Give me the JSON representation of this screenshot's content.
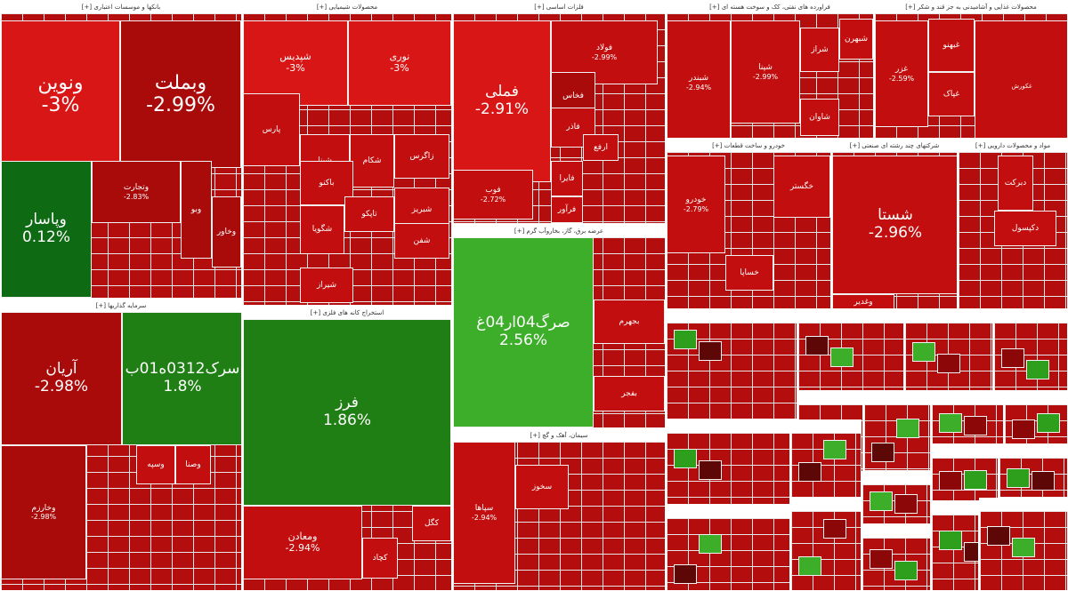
{
  "sectors": [
    {
      "key": "banks",
      "label": "بانکها و موسسات اعتباری [+]",
      "tiles": [
        {
          "name": "ونوین",
          "pct": "-3%"
        },
        {
          "name": "وبملت",
          "pct": "-2.99%"
        },
        {
          "name": "وپاسار",
          "pct": "0.12%"
        },
        {
          "name": "وتجارت",
          "pct": "-2.83%"
        },
        {
          "name": "وبو"
        },
        {
          "name": "وخاور"
        }
      ]
    },
    {
      "key": "chemical",
      "label": "محصولات شیمیایی [+]",
      "tiles": [
        {
          "name": "شپدیس",
          "pct": "-3%"
        },
        {
          "name": "نوری",
          "pct": "-3%"
        },
        {
          "name": "پارس"
        },
        {
          "name": "شپنا"
        },
        {
          "name": "شکام"
        },
        {
          "name": "زاگرس"
        },
        {
          "name": "باکنو"
        },
        {
          "name": "شبریز"
        },
        {
          "name": "شگویا"
        },
        {
          "name": "تاپکو"
        },
        {
          "name": "شفن"
        },
        {
          "name": "شیراز"
        }
      ]
    },
    {
      "key": "metals",
      "label": "فلزات اساسی [+]",
      "tiles": [
        {
          "name": "فملی",
          "pct": "-2.91%"
        },
        {
          "name": "فولاد",
          "pct": "-2.99%"
        },
        {
          "name": "فوب",
          "pct": "-2.72%"
        },
        {
          "name": "فخاس"
        },
        {
          "name": "فاذر"
        },
        {
          "name": "فرآور"
        },
        {
          "name": "فایرا"
        },
        {
          "name": "ارفع"
        }
      ]
    },
    {
      "key": "oil",
      "label": "فراورده های نفتی، کک و سوخت هسته ای [+]",
      "tiles": [
        {
          "name": "شبندر",
          "pct": "-2.94%"
        },
        {
          "name": "شپنا",
          "pct": "-2.99%"
        },
        {
          "name": "شراز"
        },
        {
          "name": "شاوان"
        },
        {
          "name": "شبهرن"
        }
      ]
    },
    {
      "key": "food",
      "label": "محصولات غذایی و آشامیدنی به جز قند و شکر [+]",
      "tiles": [
        {
          "name": "غزر",
          "pct": "-2.59%"
        },
        {
          "name": "غبهنو"
        },
        {
          "name": "غپاک"
        },
        {
          "name": "غکورش"
        }
      ]
    },
    {
      "key": "finance",
      "label": "سرمایه گذاریها [+]",
      "tiles": [
        {
          "name": "آریان",
          "pct": "-2.98%"
        },
        {
          "name": "سرک0312ه01ب",
          "pct": "1.8%"
        },
        {
          "name": "وخارزم",
          "pct": "-2.98%"
        },
        {
          "name": "وسپه"
        },
        {
          "name": "وصنا"
        }
      ]
    },
    {
      "key": "mining",
      "label": "استخراج کانه های فلزی [+]",
      "tiles": [
        {
          "name": "فرز",
          "pct": "1.86%"
        },
        {
          "name": "ومعادن",
          "pct": "-2.94%"
        },
        {
          "name": "کگل"
        },
        {
          "name": "کچاد"
        }
      ]
    },
    {
      "key": "utilities",
      "label": "عرضه برق، گاز، بخاروآب گرم [+]",
      "tiles": [
        {
          "name": "صرگ04ار04غ",
          "pct": "2.56%"
        },
        {
          "name": "بجهرم"
        },
        {
          "name": "بفجر"
        }
      ]
    },
    {
      "key": "auto",
      "label": "خودرو و ساخت قطعات [+]",
      "tiles": [
        {
          "name": "خودرو",
          "pct": "-2.79%"
        },
        {
          "name": "خگستر"
        },
        {
          "name": "خساپا"
        }
      ]
    },
    {
      "key": "multi",
      "label": "شرکتهای چند رشته ای صنعتی [+]",
      "tiles": [
        {
          "name": "شستا",
          "pct": "-2.96%"
        },
        {
          "name": "وغدیر"
        }
      ]
    },
    {
      "key": "pharma",
      "label": "مواد و محصولات دارویی [+]",
      "tiles": [
        {
          "name": "دبرکت"
        },
        {
          "name": "دکپسول"
        }
      ]
    },
    {
      "key": "cement",
      "label": "سیمان، آهک و گچ [+]",
      "tiles": [
        {
          "name": "سپاها",
          "pct": "-2.94%"
        },
        {
          "name": "سخوز"
        }
      ]
    }
  ]
}
